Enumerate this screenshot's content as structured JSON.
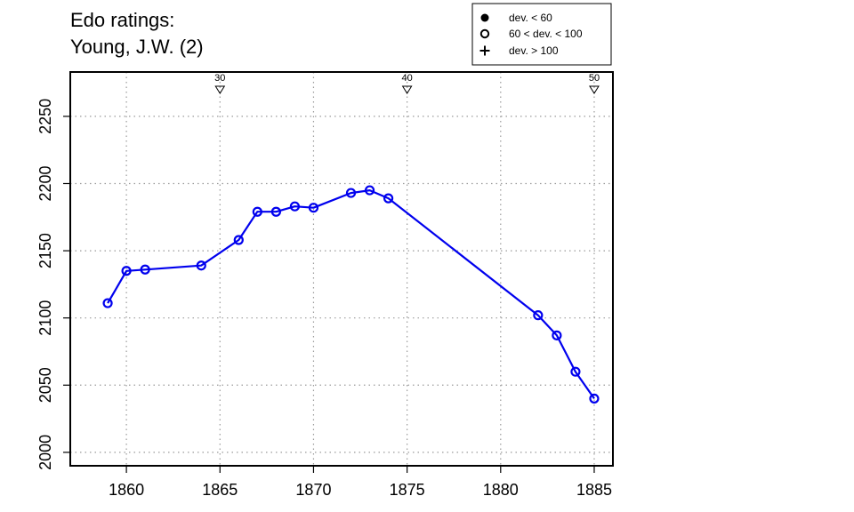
{
  "chart_data": {
    "type": "line",
    "title": "Edo ratings:",
    "subtitle": "Young, J.W. (2)",
    "xlabel": "",
    "ylabel": "",
    "xlim": [
      1857,
      1886
    ],
    "ylim": [
      1990,
      2283
    ],
    "x_ticks": [
      1860,
      1865,
      1870,
      1875,
      1880,
      1885
    ],
    "y_ticks": [
      2000,
      2050,
      2100,
      2150,
      2200,
      2250
    ],
    "x_tick_labels": [
      "1860",
      "1865",
      "1870",
      "1875",
      "1880",
      "1885"
    ],
    "y_tick_labels": [
      "2000",
      "2050",
      "2100",
      "2150",
      "2200",
      "2250"
    ],
    "grid": "dotted",
    "legend_position": "top-right",
    "legend": [
      {
        "symbol": "filled-circle",
        "label": "dev. < 60"
      },
      {
        "symbol": "open-circle",
        "label": "60 < dev. < 100"
      },
      {
        "symbol": "plus",
        "label": "dev. > 100"
      }
    ],
    "top_markers": [
      {
        "x": 1865,
        "label": "30"
      },
      {
        "x": 1875,
        "label": "40"
      },
      {
        "x": 1885,
        "label": "50"
      }
    ],
    "series": [
      {
        "color": "#0000ee",
        "marker": "open-circle",
        "x": [
          1859,
          1860,
          1861,
          1864,
          1866,
          1867,
          1868,
          1869,
          1870,
          1872,
          1873,
          1874,
          1882,
          1883,
          1884,
          1885
        ],
        "y": [
          2111,
          2135,
          2136,
          2139,
          2158,
          2179,
          2179,
          2183,
          2182,
          2193,
          2195,
          2189,
          2102,
          2087,
          2060,
          2040
        ]
      }
    ]
  }
}
